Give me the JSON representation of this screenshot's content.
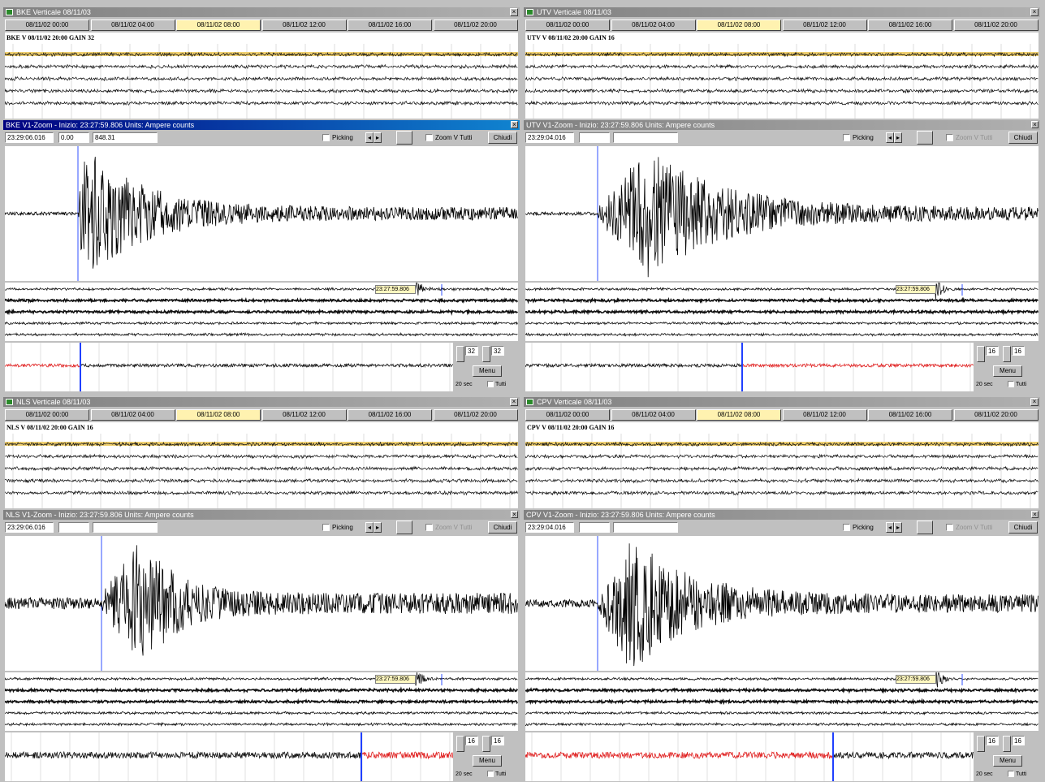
{
  "panels": [
    {
      "title": "BKE Verticale 08/11/03",
      "tabs": [
        {
          "label": "08/11/02 00:00",
          "active": false
        },
        {
          "label": "08/11/02 04:00",
          "active": false
        },
        {
          "label": "08/11/02 08:00",
          "active": true
        },
        {
          "label": "08/11/02 12:00",
          "active": false
        },
        {
          "label": "08/11/02 16:00",
          "active": false
        },
        {
          "label": "08/11/02 20:00",
          "active": false
        }
      ],
      "station_label": "BKE V 08/11/02 20:00 GAIN 32",
      "zoom_title": "BKE V1-Zoom - Inizio: 23:27:59.806 Units: Ampere counts",
      "zoom_fields": [
        "23:29:06.016",
        "0.00",
        "848.31"
      ],
      "picking": "Picking",
      "zoom_all": "Zoom V Tutti",
      "close": "Chiudi",
      "marker": "23:27:59.806",
      "gain_fields": [
        "32",
        "32"
      ],
      "menu": "Menu",
      "duration": "20 sec",
      "all": "Tutti"
    },
    {
      "title": "UTV Verticale 08/11/03",
      "tabs": [
        {
          "label": "08/11/02 00:00",
          "active": false
        },
        {
          "label": "08/11/02 04:00",
          "active": false
        },
        {
          "label": "08/11/02 08:00",
          "active": true
        },
        {
          "label": "08/11/02 12:00",
          "active": false
        },
        {
          "label": "08/11/02 16:00",
          "active": false
        },
        {
          "label": "08/11/02 20:00",
          "active": false
        }
      ],
      "station_label": "UTV V 08/11/02 20:00 GAIN 16",
      "zoom_title": "UTV V1-Zoom - Inizio: 23:27:59.806 Units: Ampere counts",
      "zoom_fields": [
        "23:29:04.016"
      ],
      "picking": "Picking",
      "zoom_all": "Zoom V Tutti",
      "close": "Chiudi",
      "marker": "23:27:59.806",
      "gain_fields": [
        "16",
        "16"
      ],
      "menu": "Menu",
      "duration": "20 sec",
      "all": "Tutti"
    },
    {
      "title": "NLS Verticale 08/11/03",
      "tabs": [
        {
          "label": "08/11/02 00:00",
          "active": false
        },
        {
          "label": "08/11/02 04:00",
          "active": false
        },
        {
          "label": "08/11/02 08:00",
          "active": true
        },
        {
          "label": "08/11/02 12:00",
          "active": false
        },
        {
          "label": "08/11/02 16:00",
          "active": false
        },
        {
          "label": "08/11/02 20:00",
          "active": false
        }
      ],
      "station_label": "NLS V 08/11/02 20:00 GAIN 16",
      "zoom_title": "NLS V1-Zoom - Inizio: 23:27:59.806 Units: Ampere counts",
      "zoom_fields": [
        "23:29:06.016"
      ],
      "picking": "Picking",
      "zoom_all": "Zoom V Tutti",
      "close": "Chiudi",
      "marker": "23:27:59.806",
      "gain_fields": [
        "16",
        "16"
      ],
      "menu": "Menu",
      "duration": "20 sec",
      "all": "Tutti"
    },
    {
      "title": "CPV Verticale 08/11/03",
      "tabs": [
        {
          "label": "08/11/02 00:00",
          "active": false
        },
        {
          "label": "08/11/02 04:00",
          "active": false
        },
        {
          "label": "08/11/02 08:00",
          "active": true
        },
        {
          "label": "08/11/02 12:00",
          "active": false
        },
        {
          "label": "08/11/02 16:00",
          "active": false
        },
        {
          "label": "08/11/02 20:00",
          "active": false
        }
      ],
      "station_label": "CPV V 08/11/02 20:00 GAIN 16",
      "zoom_title": "CPV V1-Zoom - Inizio: 23:27:59.806 Units: Ampere counts",
      "zoom_fields": [
        "23:29:04.016"
      ],
      "picking": "Picking",
      "zoom_all": "Zoom V Tutti",
      "close": "Chiudi",
      "marker": "23:27:59.806",
      "gain_fields": [
        "16",
        "16"
      ],
      "menu": "Menu",
      "duration": "20 sec",
      "all": "Tutti"
    }
  ]
}
